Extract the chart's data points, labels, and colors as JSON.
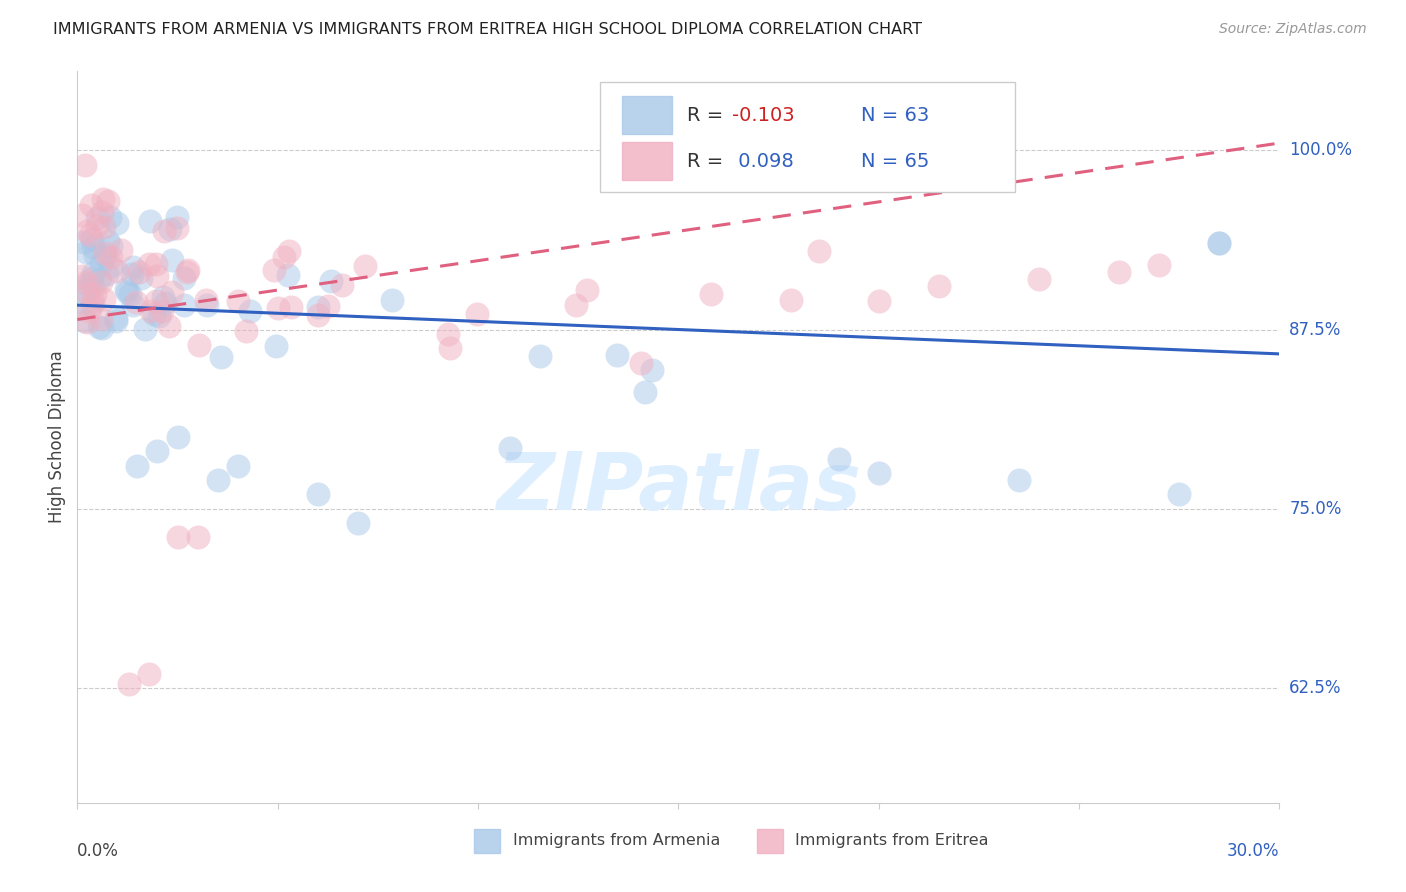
{
  "title": "IMMIGRANTS FROM ARMENIA VS IMMIGRANTS FROM ERITREA HIGH SCHOOL DIPLOMA CORRELATION CHART",
  "source": "Source: ZipAtlas.com",
  "ylabel": "High School Diploma",
  "yticks": [
    0.625,
    0.75,
    0.875,
    1.0
  ],
  "ytick_labels": [
    "62.5%",
    "75.0%",
    "87.5%",
    "100.0%"
  ],
  "xmin": 0.0,
  "xmax": 0.3,
  "ymin": 0.545,
  "ymax": 1.055,
  "armenia_color": "#a8c8e8",
  "eritrea_color": "#f0b0c0",
  "armenia_line_color": "#3060c0",
  "eritrea_line_color": "#e06080",
  "armenia_R": -0.103,
  "armenia_N": 63,
  "eritrea_R": 0.098,
  "eritrea_N": 65,
  "legend_label_1": "Immigrants from Armenia",
  "legend_label_2": "Immigrants from Eritrea",
  "watermark": "ZIPatlas",
  "arm_line_y0": 0.892,
  "arm_line_y1": 0.858,
  "eri_line_y0": 0.882,
  "eri_line_y1": 1.005
}
